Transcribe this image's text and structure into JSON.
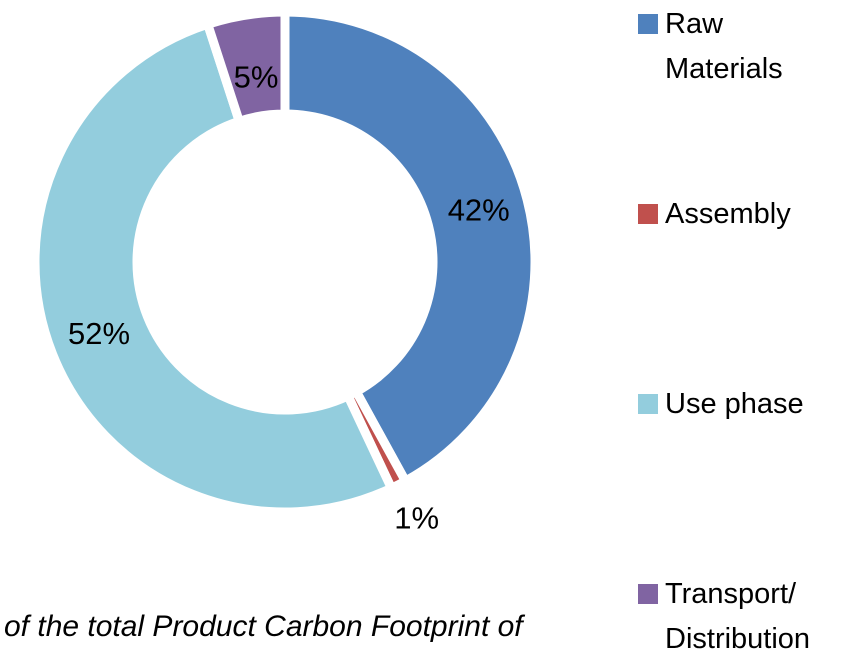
{
  "chart_data": {
    "type": "donut",
    "categories": [
      "Raw Materials",
      "Assembly",
      "Use phase",
      "Transport/ Distribution"
    ],
    "values": [
      42,
      1,
      52,
      5
    ],
    "value_labels": [
      "42%",
      "1%",
      "52%",
      "5%"
    ],
    "colors": [
      "#4f81bd",
      "#c0504d",
      "#93cddd",
      "#8064a2"
    ],
    "legend": "right"
  },
  "caption": "of the total Product Carbon Footprint of"
}
